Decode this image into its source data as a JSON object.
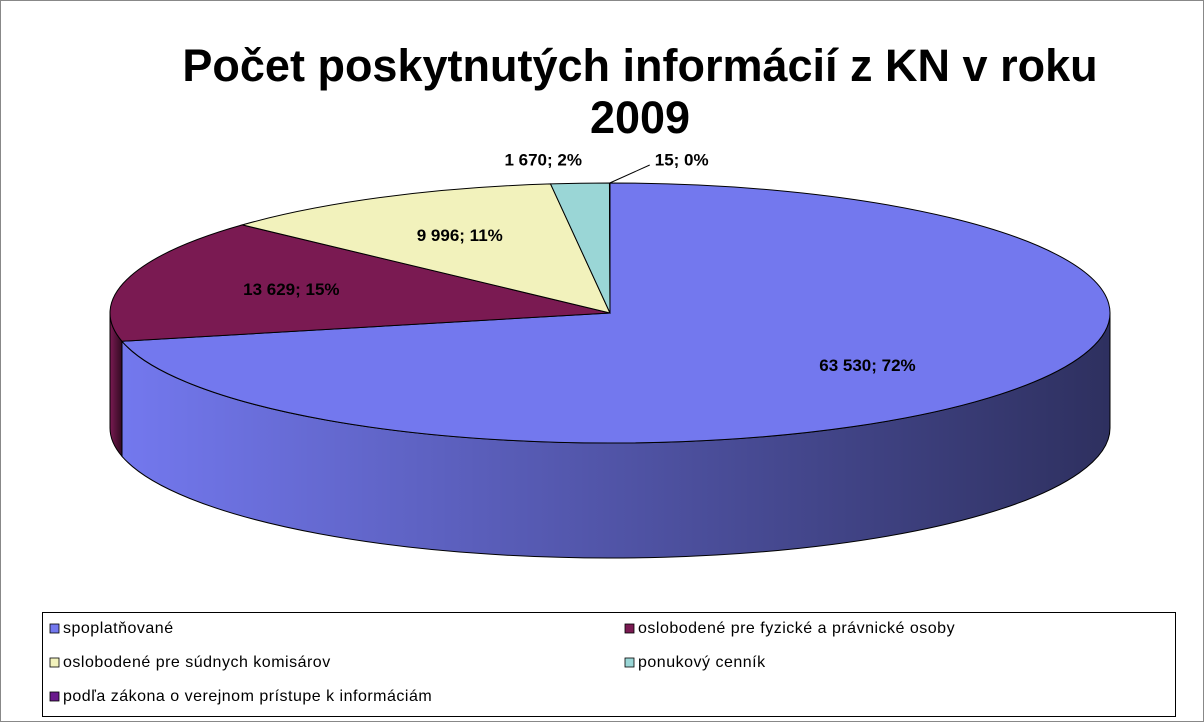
{
  "chart_data": {
    "type": "pie",
    "title": "Počet poskytnutých informácií z KN v roku 2009",
    "categories": [
      "spoplatňované",
      "oslobodené pre fyzické a právnické osoby",
      "oslobodené pre súdnych komisárov",
      "ponukový cenník",
      "podľa zákona o verejnom prístupe k informáciám"
    ],
    "values": [
      63530,
      13629,
      9996,
      1670,
      15
    ],
    "value_labels": [
      "63 530; 72%",
      "13 629; 15%",
      "9 996; 11%",
      "1 670; 2%",
      "15; 0%"
    ],
    "colors": [
      "#7378ee",
      "#7a1a52",
      "#f2f2bc",
      "#9ad6d6",
      "#6a1a8c"
    ],
    "legend": "bottom"
  }
}
